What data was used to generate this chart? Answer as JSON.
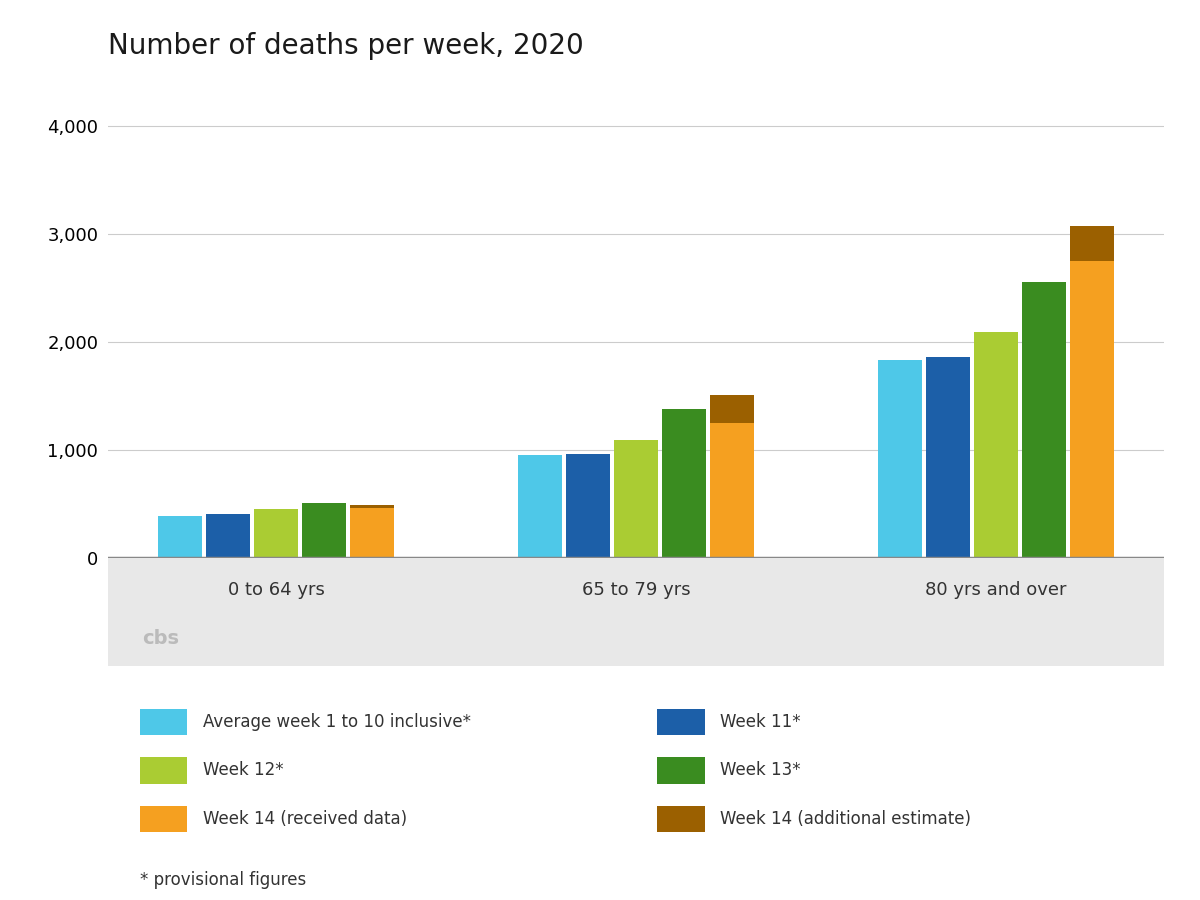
{
  "title": "Number of deaths per week, 2020",
  "groups": [
    "0 to 64 yrs",
    "65 to 79 yrs",
    "80 yrs and over"
  ],
  "series_labels": [
    "Average week 1 to 10 inclusive*",
    "Week 11*",
    "Week 12*",
    "Week 13*",
    "Week 14 (received data)",
    "Week 14 (additional estimate)"
  ],
  "colors": {
    "avg": "#4EC8E8",
    "week11": "#1C5FA8",
    "week12": "#AACC33",
    "week13": "#3A8C20",
    "week14_received": "#F5A020",
    "week14_estimate": "#9B6000"
  },
  "values": {
    "avg": [
      390,
      950,
      1830
    ],
    "week11": [
      405,
      960,
      1860
    ],
    "week12": [
      450,
      1090,
      2090
    ],
    "week13": [
      510,
      1380,
      2560
    ],
    "week14_received": [
      460,
      1250,
      2750
    ],
    "week14_estimate": [
      30,
      260,
      320
    ]
  },
  "ylim": [
    0,
    4500
  ],
  "yticks": [
    0,
    1000,
    2000,
    3000,
    4000
  ],
  "footer_note": "* provisional figures"
}
